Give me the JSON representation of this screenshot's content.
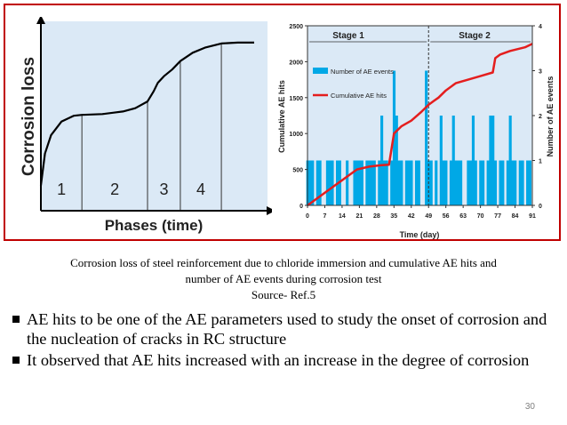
{
  "captions": {
    "line1": "Corrosion loss of steel reinforcement due to chloride immersion and cumulative AE hits and",
    "line2": "number of AE events during corrosion test",
    "source": "Source- Ref.5"
  },
  "bullets": [
    "AE hits to be one of the AE parameters used to study the onset of corrosion and the nucleation of cracks in RC structure",
    "It observed that AE hits increased with an increase in the degree of corrosion"
  ],
  "page_number": "30",
  "colors": {
    "frame": "#c00000",
    "plot_bg": "#dbe9f6",
    "events": "#00a8e6",
    "hits": "#e41e1e"
  },
  "chart_data": [
    {
      "type": "line",
      "title": "",
      "xlabel": "Phases (time)",
      "ylabel": "Corrosion loss",
      "phase_labels": [
        "1",
        "2",
        "3",
        "4"
      ],
      "phase_boundaries": [
        0,
        1,
        2.6,
        3.4,
        4.4,
        5.2
      ],
      "x": [
        0,
        0.1,
        0.25,
        0.5,
        0.8,
        1.0,
        1.5,
        2.0,
        2.3,
        2.6,
        2.75,
        2.85,
        3.0,
        3.2,
        3.4,
        3.7,
        4.0,
        4.4,
        4.8,
        5.2
      ],
      "values": [
        0.15,
        0.34,
        0.45,
        0.53,
        0.565,
        0.57,
        0.575,
        0.59,
        0.61,
        0.65,
        0.71,
        0.76,
        0.8,
        0.84,
        0.89,
        0.94,
        0.97,
        0.995,
        1.0,
        1.0
      ],
      "xlim": [
        0,
        5.2
      ],
      "ylim": [
        0,
        1.1
      ],
      "grid": false
    },
    {
      "type": "bar",
      "title": "",
      "xlabel": "Time (day)",
      "ylabel": "Cumulative AE hits",
      "y2label": "Number of AE events",
      "stage_labels": [
        "Stage 1",
        "Stage 2"
      ],
      "stage_boundary": 49,
      "xticks": [
        "0",
        "7",
        "14",
        "21",
        "28",
        "35",
        "42",
        "49",
        "56",
        "63",
        "70",
        "77",
        "84",
        "91"
      ],
      "yticks": [
        "0",
        "500",
        "1000",
        "1500",
        "2000",
        "2500"
      ],
      "y2ticks": [
        "0",
        "1",
        "2",
        "3",
        "4"
      ],
      "xlim": [
        0,
        91
      ],
      "ylim": [
        0,
        2500
      ],
      "y2lim": [
        0,
        4
      ],
      "series": [
        {
          "name": "Number of AE events",
          "axis": "right",
          "x": [
            0,
            1,
            2,
            3,
            4,
            5,
            6,
            7,
            8,
            9,
            10,
            11,
            12,
            13,
            14,
            15,
            16,
            17,
            18,
            19,
            20,
            21,
            22,
            23,
            24,
            25,
            26,
            27,
            28,
            29,
            30,
            31,
            32,
            33,
            34,
            35,
            36,
            37,
            38,
            39,
            40,
            41,
            42,
            43,
            44,
            45,
            46,
            47,
            48,
            49,
            50,
            51,
            52,
            53,
            54,
            55,
            56,
            57,
            58,
            59,
            60,
            61,
            62,
            63,
            64,
            65,
            66,
            67,
            68,
            69,
            70,
            71,
            72,
            73,
            74,
            75,
            76,
            77,
            78,
            79,
            80,
            81,
            82,
            83,
            84,
            85,
            86,
            87,
            88,
            89,
            90,
            91
          ],
          "values": [
            1,
            1,
            1,
            0,
            1,
            1,
            0,
            0,
            1,
            1,
            1,
            0,
            1,
            1,
            0,
            0,
            1,
            0,
            0,
            1,
            1,
            1,
            1,
            0,
            1,
            1,
            1,
            1,
            0,
            1,
            2,
            1,
            1,
            0,
            1,
            3,
            2,
            1,
            1,
            0,
            1,
            1,
            1,
            0,
            1,
            1,
            0,
            0,
            3,
            1,
            1,
            0,
            1,
            0,
            2,
            1,
            1,
            0,
            1,
            2,
            1,
            1,
            1,
            0,
            0,
            1,
            1,
            2,
            1,
            0,
            1,
            1,
            0,
            1,
            2,
            2,
            1,
            0,
            1,
            1,
            0,
            1,
            2,
            1,
            1,
            0,
            1,
            1,
            0,
            1,
            1,
            0
          ]
        },
        {
          "name": "Cumulative AE hits",
          "axis": "left",
          "x": [
            0,
            10,
            20,
            25,
            30,
            33,
            35,
            38,
            42,
            46,
            49,
            51,
            53,
            56,
            60,
            65,
            70,
            75,
            76,
            78,
            82,
            88,
            91
          ],
          "values": [
            0,
            250,
            500,
            540,
            560,
            565,
            1000,
            1100,
            1180,
            1300,
            1400,
            1450,
            1500,
            1600,
            1700,
            1750,
            1800,
            1850,
            2050,
            2100,
            2150,
            2200,
            2250
          ]
        }
      ]
    }
  ]
}
